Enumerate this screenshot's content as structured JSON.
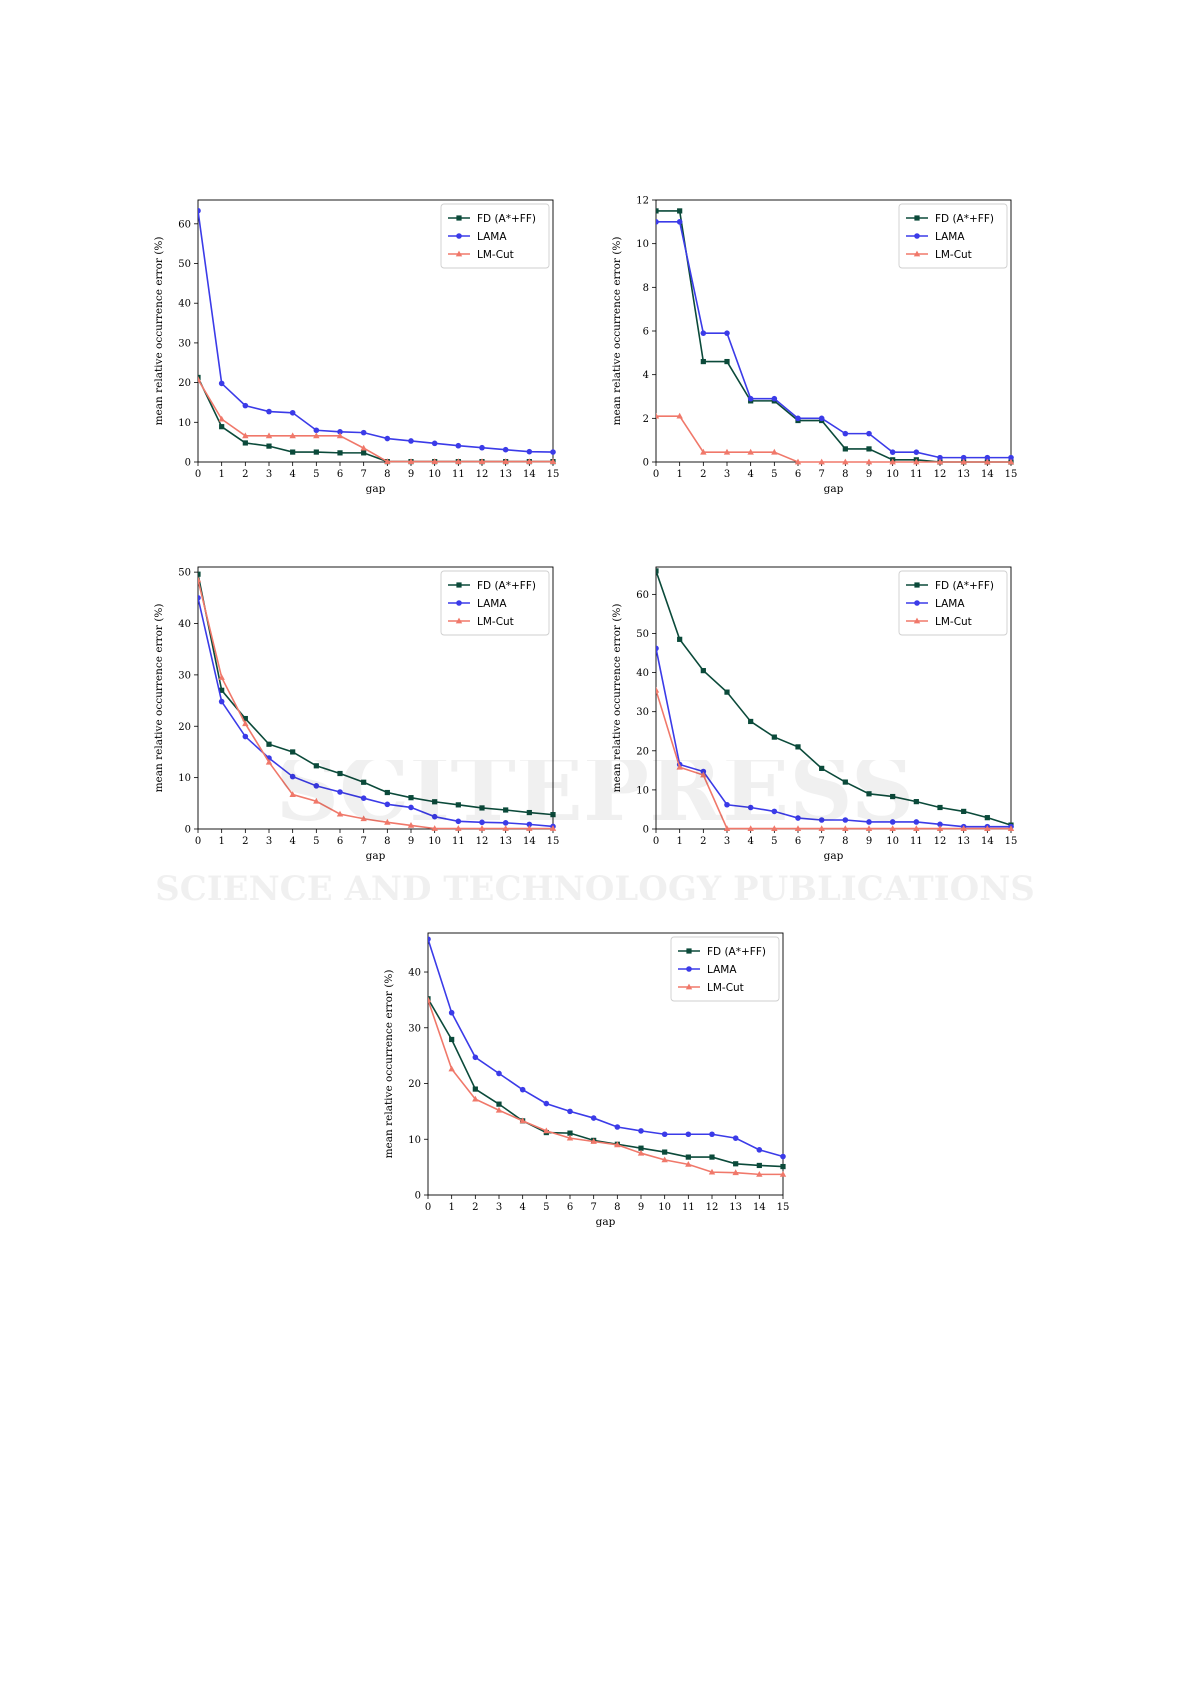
{
  "chart_data": [
    {
      "type": "line",
      "xlabel": "gap",
      "ylabel": "mean relative occurrence error (%)",
      "xlim": [
        0,
        15
      ],
      "ylim": [
        0,
        66
      ],
      "xticks": [
        0,
        1,
        2,
        3,
        4,
        5,
        6,
        7,
        8,
        9,
        10,
        11,
        12,
        13,
        14,
        15
      ],
      "yticks": [
        0,
        10,
        20,
        30,
        40,
        50,
        60
      ],
      "legend_position": "top-right",
      "x": [
        0,
        1,
        2,
        3,
        4,
        5,
        6,
        7,
        8,
        9,
        10,
        11,
        12,
        13,
        14,
        15
      ],
      "series": [
        {
          "name": "FD (A*+FF)",
          "color": "#0b4a3a",
          "marker": "square",
          "values": [
            21.3,
            8.9,
            4.8,
            4.0,
            2.5,
            2.5,
            2.3,
            2.3,
            0.1,
            0.1,
            0.1,
            0.1,
            0.1,
            0.1,
            0.1,
            0.1
          ]
        },
        {
          "name": "LAMA",
          "color": "#3b3be8",
          "marker": "circle",
          "values": [
            63.3,
            19.8,
            14.2,
            12.7,
            12.4,
            8.0,
            7.6,
            7.4,
            5.9,
            5.3,
            4.7,
            4.1,
            3.6,
            3.1,
            2.6,
            2.5
          ]
        },
        {
          "name": "LM-Cut",
          "color": "#f0786a",
          "marker": "triangle",
          "values": [
            20.8,
            10.8,
            6.6,
            6.6,
            6.6,
            6.6,
            6.6,
            3.5,
            0.1,
            0.1,
            0.1,
            0.1,
            0.1,
            0.1,
            0.1,
            0.1
          ]
        }
      ]
    },
    {
      "type": "line",
      "xlabel": "gap",
      "ylabel": "mean relative occurrence error (%)",
      "xlim": [
        0,
        15
      ],
      "ylim": [
        0,
        12
      ],
      "xticks": [
        0,
        1,
        2,
        3,
        4,
        5,
        6,
        7,
        8,
        9,
        10,
        11,
        12,
        13,
        14,
        15
      ],
      "yticks": [
        0,
        2,
        4,
        6,
        8,
        10,
        12
      ],
      "legend_position": "top-right",
      "x": [
        0,
        1,
        2,
        3,
        4,
        5,
        6,
        7,
        8,
        9,
        10,
        11,
        12,
        13,
        14,
        15
      ],
      "series": [
        {
          "name": "FD (A*+FF)",
          "color": "#0b4a3a",
          "marker": "square",
          "values": [
            11.5,
            11.5,
            4.6,
            4.6,
            2.8,
            2.8,
            1.9,
            1.9,
            0.6,
            0.6,
            0.1,
            0.1,
            0.0,
            0.0,
            0.0,
            0.0
          ]
        },
        {
          "name": "LAMA",
          "color": "#3b3be8",
          "marker": "circle",
          "values": [
            11.0,
            11.0,
            5.9,
            5.9,
            2.9,
            2.9,
            2.0,
            2.0,
            1.3,
            1.3,
            0.45,
            0.45,
            0.2,
            0.2,
            0.2,
            0.2
          ]
        },
        {
          "name": "LM-Cut",
          "color": "#f0786a",
          "marker": "triangle",
          "values": [
            2.1,
            2.1,
            0.45,
            0.45,
            0.45,
            0.45,
            0.0,
            0.0,
            0.0,
            0.0,
            0.0,
            0.0,
            0.0,
            0.0,
            0.0,
            0.0
          ]
        }
      ]
    },
    {
      "type": "line",
      "xlabel": "gap",
      "ylabel": "mean relative occurrence error (%)",
      "xlim": [
        0,
        15
      ],
      "ylim": [
        0,
        51
      ],
      "xticks": [
        0,
        1,
        2,
        3,
        4,
        5,
        6,
        7,
        8,
        9,
        10,
        11,
        12,
        13,
        14,
        15
      ],
      "yticks": [
        0,
        10,
        20,
        30,
        40,
        50
      ],
      "legend_position": "top-right",
      "x": [
        0,
        1,
        2,
        3,
        4,
        5,
        6,
        7,
        8,
        9,
        10,
        11,
        12,
        13,
        14,
        15
      ],
      "series": [
        {
          "name": "FD (A*+FF)",
          "color": "#0b4a3a",
          "marker": "square",
          "values": [
            49.6,
            27.0,
            21.5,
            16.5,
            15.0,
            12.3,
            10.8,
            9.1,
            7.1,
            6.1,
            5.3,
            4.7,
            4.1,
            3.7,
            3.2,
            2.8
          ]
        },
        {
          "name": "LAMA",
          "color": "#3b3be8",
          "marker": "circle",
          "values": [
            45.0,
            24.8,
            18.0,
            13.8,
            10.2,
            8.4,
            7.2,
            6.0,
            4.8,
            4.2,
            2.4,
            1.5,
            1.3,
            1.2,
            0.9,
            0.5
          ]
        },
        {
          "name": "LM-Cut",
          "color": "#f0786a",
          "marker": "triangle",
          "values": [
            48.5,
            29.5,
            20.5,
            13.0,
            6.7,
            5.4,
            2.9,
            2.0,
            1.3,
            0.7,
            0.1,
            0.1,
            0.1,
            0.1,
            0.1,
            0.1
          ]
        }
      ]
    },
    {
      "type": "line",
      "xlabel": "gap",
      "ylabel": "mean relative occurrence error (%)",
      "xlim": [
        0,
        15
      ],
      "ylim": [
        0,
        67
      ],
      "xticks": [
        0,
        1,
        2,
        3,
        4,
        5,
        6,
        7,
        8,
        9,
        10,
        11,
        12,
        13,
        14,
        15
      ],
      "yticks": [
        0,
        10,
        20,
        30,
        40,
        50,
        60
      ],
      "legend_position": "top-right",
      "x": [
        0,
        1,
        2,
        3,
        4,
        5,
        6,
        7,
        8,
        9,
        10,
        11,
        12,
        13,
        14,
        15
      ],
      "series": [
        {
          "name": "FD (A*+FF)",
          "color": "#0b4a3a",
          "marker": "square",
          "values": [
            66.0,
            48.5,
            40.5,
            35.0,
            27.5,
            23.5,
            21.0,
            15.5,
            12.0,
            9.0,
            8.3,
            7.0,
            5.5,
            4.5,
            2.9,
            1.0
          ]
        },
        {
          "name": "LAMA",
          "color": "#3b3be8",
          "marker": "circle",
          "values": [
            46.2,
            16.5,
            14.7,
            6.2,
            5.5,
            4.5,
            2.8,
            2.3,
            2.3,
            1.8,
            1.8,
            1.8,
            1.2,
            0.6,
            0.6,
            0.6
          ]
        },
        {
          "name": "LM-Cut",
          "color": "#f0786a",
          "marker": "triangle",
          "values": [
            35.5,
            15.8,
            13.8,
            0.1,
            0.1,
            0.1,
            0.1,
            0.1,
            0.1,
            0.1,
            0.1,
            0.1,
            0.1,
            0.1,
            0.1,
            0.1
          ]
        }
      ]
    },
    {
      "type": "line",
      "xlabel": "gap",
      "ylabel": "mean relative occurrence error (%)",
      "xlim": [
        0,
        15
      ],
      "ylim": [
        0,
        47
      ],
      "xticks": [
        0,
        1,
        2,
        3,
        4,
        5,
        6,
        7,
        8,
        9,
        10,
        11,
        12,
        13,
        14,
        15
      ],
      "yticks": [
        0,
        10,
        20,
        30,
        40
      ],
      "legend_position": "top-right",
      "x": [
        0,
        1,
        2,
        3,
        4,
        5,
        6,
        7,
        8,
        9,
        10,
        11,
        12,
        13,
        14,
        15
      ],
      "series": [
        {
          "name": "FD (A*+FF)",
          "color": "#0b4a3a",
          "marker": "square",
          "values": [
            35.2,
            27.9,
            19.0,
            16.3,
            13.3,
            11.2,
            11.1,
            9.8,
            9.1,
            8.4,
            7.7,
            6.8,
            6.8,
            5.6,
            5.3,
            5.1
          ]
        },
        {
          "name": "LAMA",
          "color": "#3b3be8",
          "marker": "circle",
          "values": [
            45.9,
            32.7,
            24.7,
            21.8,
            18.9,
            16.4,
            15.0,
            13.8,
            12.2,
            11.5,
            10.9,
            10.9,
            10.9,
            10.2,
            8.1,
            6.9
          ]
        },
        {
          "name": "LM-Cut",
          "color": "#f0786a",
          "marker": "triangle",
          "values": [
            35.0,
            22.6,
            17.2,
            15.2,
            13.3,
            11.5,
            10.2,
            9.6,
            9.0,
            7.5,
            6.3,
            5.5,
            4.1,
            4.0,
            3.7,
            3.7
          ]
        }
      ]
    }
  ],
  "watermark": {
    "line1": "SCITEPRESS",
    "line2": "SCIENCE AND TECHNOLOGY PUBLICATIONS"
  }
}
